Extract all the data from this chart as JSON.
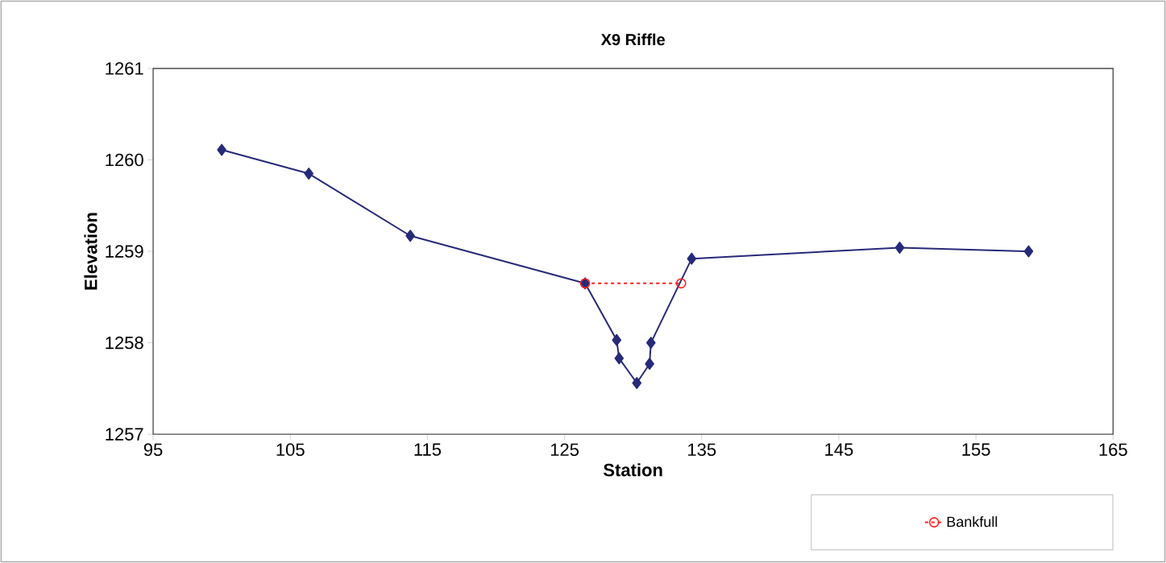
{
  "chart_data": {
    "type": "line",
    "title": "X9 Riffle",
    "xlabel": "Station",
    "ylabel": "Elevation",
    "series": [
      {
        "color": "#262a78",
        "marker": "diamond",
        "line_style": "solid",
        "x": [
          100.0,
          106.35,
          113.75,
          126.5,
          128.8,
          128.98,
          130.27,
          131.2,
          131.3,
          134.27,
          149.44,
          158.84
        ],
        "values": [
          1260.11,
          1259.85,
          1259.17,
          1258.65,
          1258.03,
          1257.83,
          1257.56,
          1257.77,
          1258.0,
          1258.92,
          1259.04,
          1259.0
        ]
      },
      {
        "name": "Bankfull",
        "color": "#ff2020",
        "marker": "circle",
        "line_style": "dashed",
        "x": [
          126.5,
          133.5
        ],
        "values": [
          1258.65,
          1258.65
        ]
      }
    ],
    "xlim": [
      95,
      165
    ],
    "xticks": [
      95,
      105,
      115,
      125,
      135,
      145,
      155,
      165
    ],
    "ylim": [
      1257,
      1261
    ],
    "yticks": [
      1257,
      1258,
      1259,
      1260,
      1261
    ],
    "grid": false,
    "legend": "bottom right"
  }
}
